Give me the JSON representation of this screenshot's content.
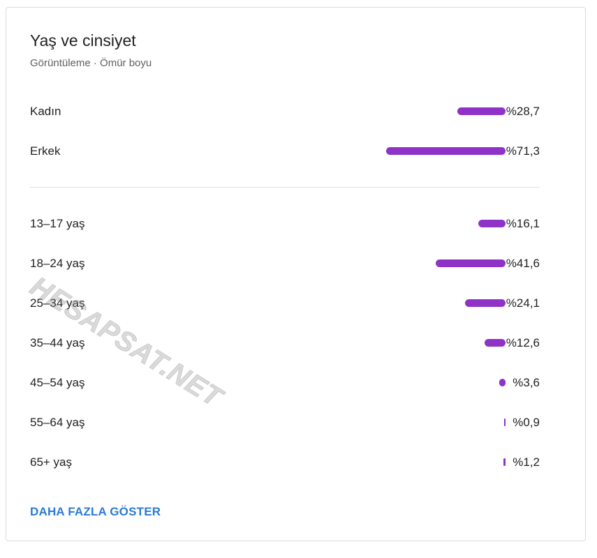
{
  "card": {
    "title": "Yaş ve cinsiyet",
    "subtitle": "Görüntüleme · Ömür boyu"
  },
  "gender": [
    {
      "label": "Kadın",
      "value": "%28,7",
      "percent": 28.7
    },
    {
      "label": "Erkek",
      "value": "%71,3",
      "percent": 71.3
    }
  ],
  "age": [
    {
      "label": "13–17 yaş",
      "value": "%16,1",
      "percent": 16.1
    },
    {
      "label": "18–24 yaş",
      "value": "%41,6",
      "percent": 41.6
    },
    {
      "label": "25–34 yaş",
      "value": "%24,1",
      "percent": 24.1
    },
    {
      "label": "35–44 yaş",
      "value": "%12,6",
      "percent": 12.6
    },
    {
      "label": "45–54 yaş",
      "value": "%3,6",
      "percent": 3.6
    },
    {
      "label": "55–64 yaş",
      "value": "%0,9",
      "percent": 0.9
    },
    {
      "label": "65+ yaş",
      "value": "%1,2",
      "percent": 1.2
    }
  ],
  "show_more_label": "DAHA FAZLA GÖSTER",
  "watermark": "HESAPSAT.NET",
  "colors": {
    "bar": "#8e32c8",
    "link": "#2a7bd6"
  }
}
